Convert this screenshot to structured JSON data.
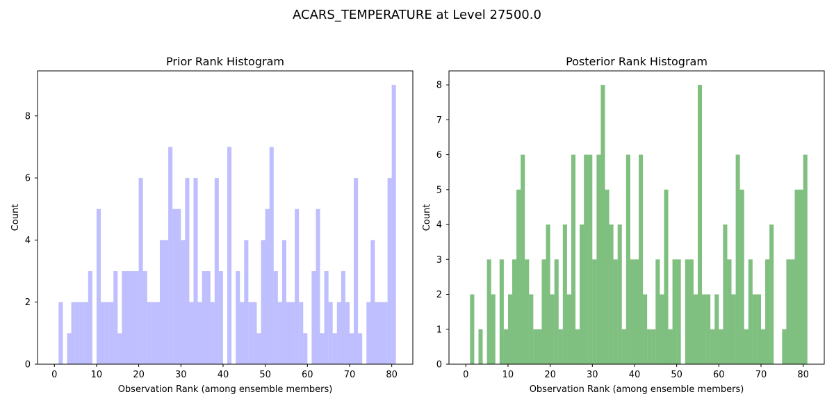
{
  "figure": {
    "suptitle": "ACARS_TEMPERATURE at Level 27500.0"
  },
  "chart_data": [
    {
      "type": "bar",
      "title": "Prior Rank Histogram",
      "xlabel": "Observation Rank (among ensemble members)",
      "ylabel": "Count",
      "color": "#8080ff",
      "bar_alpha": 0.5,
      "bin_width": 1,
      "xlim": [
        -4,
        85
      ],
      "ylim": [
        0,
        9.45
      ],
      "xticks": [
        0,
        10,
        20,
        30,
        40,
        50,
        60,
        70,
        80
      ],
      "yticks": [
        0,
        2,
        4,
        6,
        8
      ],
      "bins_start": [
        1,
        2,
        3,
        4,
        5,
        6,
        7,
        8,
        9,
        10,
        11,
        12,
        13,
        14,
        15,
        16,
        17,
        18,
        19,
        20,
        21,
        22,
        23,
        24,
        25,
        26,
        27,
        28,
        29,
        30,
        31,
        32,
        33,
        34,
        35,
        36,
        37,
        38,
        39,
        40,
        41,
        42,
        43,
        44,
        45,
        46,
        47,
        48,
        49,
        50,
        51,
        52,
        53,
        54,
        55,
        56,
        57,
        58,
        59,
        60,
        61,
        62,
        63,
        64,
        65,
        66,
        67,
        68,
        69,
        70,
        71,
        72,
        73,
        74,
        75,
        76,
        77,
        78,
        79,
        80
      ],
      "values": [
        2,
        0,
        1,
        2,
        2,
        2,
        2,
        3,
        0,
        5,
        2,
        2,
        2,
        3,
        1,
        3,
        3,
        3,
        3,
        6,
        3,
        2,
        2,
        2,
        4,
        4,
        7,
        5,
        5,
        4,
        6,
        2,
        6,
        2,
        3,
        3,
        2,
        6,
        3,
        0,
        7,
        0,
        3,
        2,
        4,
        2,
        2,
        1,
        4,
        5,
        7,
        3,
        2,
        4,
        2,
        2,
        5,
        2,
        1,
        0,
        3,
        5,
        1,
        3,
        2,
        1,
        2,
        3,
        2,
        1,
        6,
        1,
        0,
        2,
        4,
        2,
        2,
        2,
        6,
        9
      ]
    },
    {
      "type": "bar",
      "title": "Posterior Rank Histogram",
      "xlabel": "Observation Rank (among ensemble members)",
      "ylabel": "Count",
      "color": "#008000",
      "bar_alpha": 0.5,
      "bin_width": 1,
      "xlim": [
        -4,
        85
      ],
      "ylim": [
        0,
        8.4
      ],
      "xticks": [
        0,
        10,
        20,
        30,
        40,
        50,
        60,
        70,
        80
      ],
      "yticks": [
        0,
        1,
        2,
        3,
        4,
        5,
        6,
        7,
        8
      ],
      "bins_start": [
        1,
        2,
        3,
        4,
        5,
        6,
        7,
        8,
        9,
        10,
        11,
        12,
        13,
        14,
        15,
        16,
        17,
        18,
        19,
        20,
        21,
        22,
        23,
        24,
        25,
        26,
        27,
        28,
        29,
        30,
        31,
        32,
        33,
        34,
        35,
        36,
        37,
        38,
        39,
        40,
        41,
        42,
        43,
        44,
        45,
        46,
        47,
        48,
        49,
        50,
        51,
        52,
        53,
        54,
        55,
        56,
        57,
        58,
        59,
        60,
        61,
        62,
        63,
        64,
        65,
        66,
        67,
        68,
        69,
        70,
        71,
        72,
        73,
        74,
        75,
        76,
        77,
        78,
        79,
        80
      ],
      "values": [
        2,
        0,
        1,
        0,
        3,
        2,
        0,
        3,
        1,
        2,
        3,
        5,
        6,
        3,
        2,
        1,
        1,
        3,
        4,
        2,
        3,
        1,
        4,
        2,
        6,
        1,
        4,
        6,
        6,
        3,
        6,
        8,
        5,
        4,
        3,
        4,
        1,
        6,
        3,
        3,
        6,
        2,
        1,
        1,
        3,
        2,
        5,
        1,
        3,
        3,
        0,
        3,
        3,
        2,
        8,
        2,
        2,
        1,
        2,
        1,
        4,
        3,
        2,
        6,
        5,
        1,
        3,
        2,
        2,
        1,
        3,
        4,
        0,
        0,
        1,
        3,
        3,
        5,
        5,
        6
      ]
    }
  ]
}
